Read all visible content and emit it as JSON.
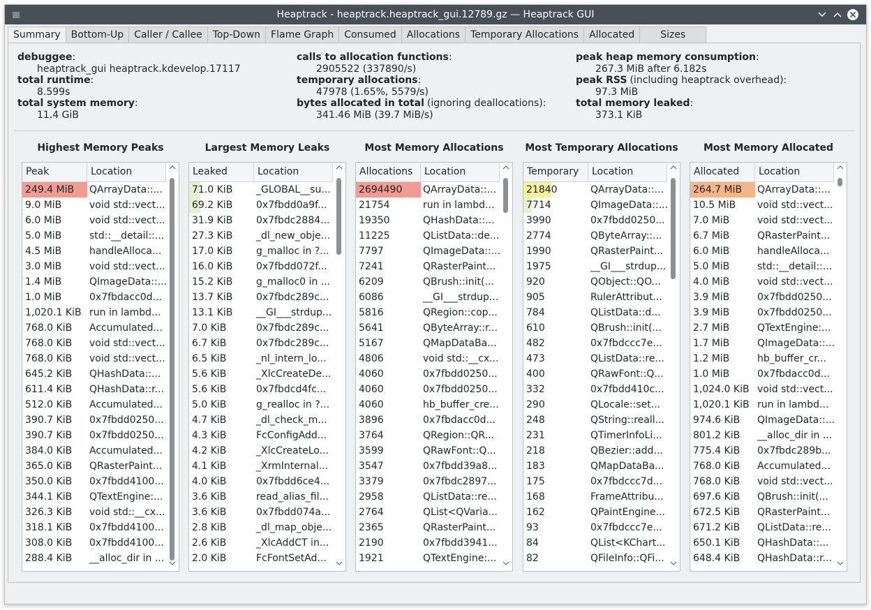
{
  "window": {
    "title": "Heaptrack - heaptrack.heaptrack_gui.12789.gz — Heaptrack GUI"
  },
  "tabs": [
    "Summary",
    "Bottom-Up",
    "Caller / Callee",
    "Top-Down",
    "Flame Graph",
    "Consumed",
    "Allocations",
    "Temporary Allocations",
    "Allocated",
    "Sizes"
  ],
  "summary": {
    "columns": [
      [
        {
          "label": "debuggee",
          "note": ":",
          "value": "heaptrack_gui heaptrack.kdevelop.17117"
        },
        {
          "label": "total runtime",
          "note": ":",
          "value": "8.599s"
        },
        {
          "label": "total system memory",
          "note": ":",
          "value": "11.4 GiB"
        }
      ],
      [
        {
          "label": "calls to allocation functions",
          "note": ":",
          "value": "2905522 (337890/s)"
        },
        {
          "label": "temporary allocations",
          "note": ":",
          "value": "47978 (1.65%, 5579/s)"
        },
        {
          "label": "bytes allocated in total",
          "note": "(ignoring deallocations):",
          "value": "341.46 MiB (39.7 MiB/s)"
        }
      ],
      [
        {
          "label": "peak heap memory consumption",
          "note": ":",
          "value": "267.3 MiB after 6.182s"
        },
        {
          "label": "peak RSS",
          "note": "(including heaptrack overhead):",
          "value": "97.3 MiB"
        },
        {
          "label": "total memory leaked",
          "note": ":",
          "value": "373.1 KiB"
        }
      ]
    ]
  },
  "panels": [
    {
      "title": "Highest Memory Peaks",
      "headers": [
        "Peak",
        "Location"
      ],
      "rows": [
        [
          "249.4 MiB",
          "QArrayData::..."
        ],
        [
          "9.0 MiB",
          "void std::vect..."
        ],
        [
          "6.0 MiB",
          "void std::vect..."
        ],
        [
          "5.0 MiB",
          "std::__detail::..."
        ],
        [
          "4.5 MiB",
          "handleAlloca..."
        ],
        [
          "3.0 MiB",
          "void std::vect..."
        ],
        [
          "1.4 MiB",
          "QImageData::..."
        ],
        [
          "1.0 MiB",
          "0x7fbdacc0d..."
        ],
        [
          "1,020.1 KiB",
          "run in lambd..."
        ],
        [
          "768.0 KiB",
          "Accumulated..."
        ],
        [
          "768.0 KiB",
          "void std::vect..."
        ],
        [
          "768.0 KiB",
          "void std::vect..."
        ],
        [
          "645.2 KiB",
          "QHashData::..."
        ],
        [
          "611.4 KiB",
          "QHashData::r..."
        ],
        [
          "512.0 KiB",
          "Accumulated..."
        ],
        [
          "390.7 KiB",
          "0x7fbdd0250..."
        ],
        [
          "390.7 KiB",
          "0x7fbdd0250..."
        ],
        [
          "384.0 KiB",
          "Accumulated..."
        ],
        [
          "365.0 KiB",
          "QRasterPaint..."
        ],
        [
          "350.0 KiB",
          "0x7fbdd4100..."
        ],
        [
          "344.1 KiB",
          "QTextEngine:..."
        ],
        [
          "326.3 KiB",
          "void std::__cx..."
        ],
        [
          "318.1 KiB",
          "0x7fbdd4100..."
        ],
        [
          "308.0 KiB",
          "0x7fbdd4100..."
        ],
        [
          "288.4 KiB",
          "__alloc_dir in ..."
        ]
      ]
    },
    {
      "title": "Largest Memory Leaks",
      "headers": [
        "Leaked",
        "Location"
      ],
      "rows": [
        [
          "71.0 KiB",
          "_GLOBAL__su..."
        ],
        [
          "69.2 KiB",
          "0x7fbdd0a9f..."
        ],
        [
          "31.9 KiB",
          "0x7fbdc2884..."
        ],
        [
          "27.3 KiB",
          "_dl_new_obje..."
        ],
        [
          "17.0 KiB",
          "g_malloc in ?..."
        ],
        [
          "16.0 KiB",
          "0x7fbdd072f..."
        ],
        [
          "15.2 KiB",
          "g_malloc0 in ..."
        ],
        [
          "13.7 KiB",
          "0x7fbdc289c..."
        ],
        [
          "13.1 KiB",
          "__GI___strdup..."
        ],
        [
          "7.0 KiB",
          "0x7fbdc289c..."
        ],
        [
          "6.7 KiB",
          "0x7fbdc289c..."
        ],
        [
          "6.5 KiB",
          "_nl_intern_lo..."
        ],
        [
          "5.6 KiB",
          "_XlcCreateDe..."
        ],
        [
          "5.6 KiB",
          "0x7fbdcd4fc..."
        ],
        [
          "5.0 KiB",
          "g_realloc in ?..."
        ],
        [
          "4.7 KiB",
          "_dl_check_m..."
        ],
        [
          "4.3 KiB",
          "FcConfigAdd..."
        ],
        [
          "4.2 KiB",
          "_XlcCreateLo..."
        ],
        [
          "4.1 KiB",
          "_XrmInternal..."
        ],
        [
          "4.0 KiB",
          "0x7fbdd6ce4..."
        ],
        [
          "3.6 KiB",
          "read_alias_fil..."
        ],
        [
          "3.6 KiB",
          "0x7fbdd074a..."
        ],
        [
          "2.8 KiB",
          "_dl_map_obje..."
        ],
        [
          "2.6 KiB",
          "_XlcAddCT in..."
        ],
        [
          "2.0 KiB",
          "FcFontSetAd..."
        ]
      ]
    },
    {
      "title": "Most Memory Allocations",
      "headers": [
        "Allocations",
        "Location"
      ],
      "rows": [
        [
          "2694490",
          "QArrayData::..."
        ],
        [
          "21754",
          "run in lambd..."
        ],
        [
          "19350",
          "QHashData::..."
        ],
        [
          "11225",
          "QListData::de..."
        ],
        [
          "7797",
          "QImageData::..."
        ],
        [
          "7241",
          "QRasterPaint..."
        ],
        [
          "6209",
          "QBrush::init(..."
        ],
        [
          "6086",
          "__GI___strdup..."
        ],
        [
          "5816",
          "QRegion::cop..."
        ],
        [
          "5641",
          "QByteArray::r..."
        ],
        [
          "5167",
          "QMapDataBa..."
        ],
        [
          "4806",
          "void std::__cx..."
        ],
        [
          "4060",
          "0x7fbdd0250..."
        ],
        [
          "4060",
          "0x7fbdd0250..."
        ],
        [
          "4060",
          "hb_buffer_cre..."
        ],
        [
          "3896",
          "0x7fbdacc0d..."
        ],
        [
          "3764",
          "QRegion::QR..."
        ],
        [
          "3599",
          "QRawFont::Q..."
        ],
        [
          "3547",
          "0x7fbdd39a8..."
        ],
        [
          "3379",
          "0x7fbdc2897..."
        ],
        [
          "2958",
          "QListData::re..."
        ],
        [
          "2764",
          "QList<QVaria..."
        ],
        [
          "2365",
          "QRasterPaint..."
        ],
        [
          "2190",
          "0x7fbdd3941..."
        ],
        [
          "1921",
          "QTextEngine:..."
        ]
      ]
    },
    {
      "title": "Most Temporary Allocations",
      "headers": [
        "Temporary",
        "Location"
      ],
      "rows": [
        [
          "21840",
          "QArrayData::..."
        ],
        [
          "7714",
          "QImageData::..."
        ],
        [
          "3990",
          "0x7fbdd0250..."
        ],
        [
          "2774",
          "QByteArray::..."
        ],
        [
          "1990",
          "QRasterPaint..."
        ],
        [
          "1975",
          "__GI___strdup..."
        ],
        [
          "920",
          "QObject::QO..."
        ],
        [
          "905",
          "RulerAttribut..."
        ],
        [
          "784",
          "QListData::d..."
        ],
        [
          "610",
          "QBrush::init(..."
        ],
        [
          "482",
          "0x7fbdccc7e..."
        ],
        [
          "473",
          "QListData::re..."
        ],
        [
          "400",
          "QRawFont::Q..."
        ],
        [
          "332",
          "0x7fbdd410c..."
        ],
        [
          "290",
          "QLocale::set..."
        ],
        [
          "248",
          "QString::reall..."
        ],
        [
          "231",
          "QTimerInfoLi..."
        ],
        [
          "218",
          "QBezier::add..."
        ],
        [
          "183",
          "QMapDataBa..."
        ],
        [
          "175",
          "0x7fbdccc7d..."
        ],
        [
          "168",
          "FrameAttribu..."
        ],
        [
          "162",
          "QPaintEngine..."
        ],
        [
          "93",
          "0x7fbdccc7e..."
        ],
        [
          "84",
          "QList<KChart..."
        ],
        [
          "82",
          "QFileInfo::QFi..."
        ]
      ]
    },
    {
      "title": "Most Memory Allocated",
      "headers": [
        "Allocated",
        "Location"
      ],
      "rows": [
        [
          "264.7 MiB",
          "QArrayData::..."
        ],
        [
          "10.5 MiB",
          "void std::vect..."
        ],
        [
          "7.0 MiB",
          "void std::vect..."
        ],
        [
          "6.7 MiB",
          "QRasterPaint..."
        ],
        [
          "6.0 MiB",
          "handleAlloca..."
        ],
        [
          "5.0 MiB",
          "std::__detail::..."
        ],
        [
          "4.0 MiB",
          "void std::vect..."
        ],
        [
          "3.9 MiB",
          "0x7fbdd0250..."
        ],
        [
          "3.9 MiB",
          "0x7fbdd0250..."
        ],
        [
          "2.7 MiB",
          "QTextEngine:..."
        ],
        [
          "1.7 MiB",
          "QImageData::..."
        ],
        [
          "1.2 MiB",
          "hb_buffer_cr..."
        ],
        [
          "1.0 MiB",
          "0x7fbdacc0d..."
        ],
        [
          "1,024.0 KiB",
          "void std::vect..."
        ],
        [
          "1,020.1 KiB",
          "run in lambd..."
        ],
        [
          "974.6 KiB",
          "QImageData::..."
        ],
        [
          "801.2 KiB",
          "__alloc_dir in ..."
        ],
        [
          "775.4 KiB",
          "0x7fbdc289b..."
        ],
        [
          "768.0 KiB",
          "Accumulated..."
        ],
        [
          "768.0 KiB",
          "void std::vect..."
        ],
        [
          "697.6 KiB",
          "QBrush::init(..."
        ],
        [
          "672.5 KiB",
          "QRasterPaint..."
        ],
        [
          "671.2 KiB",
          "QListData::re..."
        ],
        [
          "650.1 KiB",
          "QHashData::..."
        ],
        [
          "648.4 KiB",
          "QHashData::r..."
        ]
      ]
    }
  ]
}
